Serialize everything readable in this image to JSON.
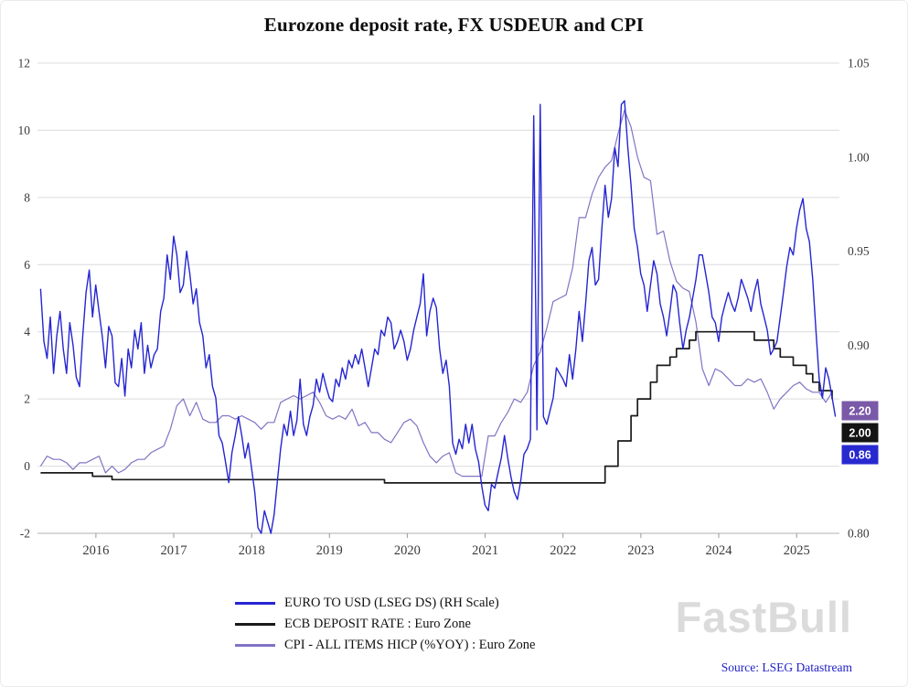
{
  "title": "Eurozone deposit rate, FX USDEUR and CPI",
  "watermark": "FastBull",
  "source": "Source: LSEG Datastream",
  "colors": {
    "eur_usd_line": "#2525d2",
    "deposit_line": "#1a1a1a",
    "cpi_line": "#8273c4",
    "grid": "#dcdcdc",
    "axis_text": "#3a3a3a",
    "source_text": "#1f1fc8",
    "watermark_text": "#d3d3d3"
  },
  "last_value_labels": [
    {
      "text": "2.20",
      "bg": "#7a5aa8",
      "text_color": "#ffffff"
    },
    {
      "text": "2.00",
      "bg": "#141414",
      "text_color": "#ffffff"
    },
    {
      "text": "0.86",
      "bg": "#2929d0",
      "text_color": "#ffffff"
    }
  ],
  "chart_data": {
    "type": "line",
    "title": "Eurozone deposit rate, FX USDEUR and CPI",
    "grid": "horizontal",
    "legend_position": "bottom-left",
    "x": {
      "min": 2015.25,
      "max": 2025.55,
      "ticks": [
        2016,
        2017,
        2018,
        2019,
        2020,
        2021,
        2022,
        2023,
        2024,
        2025
      ]
    },
    "y_left": {
      "min": -2,
      "max": 12,
      "ticks": [
        -2,
        0,
        2,
        4,
        6,
        8,
        10,
        12
      ]
    },
    "y_right": {
      "min": 0.8,
      "max": 1.05,
      "ticks": [
        {
          "value": 1.05,
          "label": "1.05"
        },
        {
          "value": 1.0,
          "label": "1.00"
        },
        {
          "value": 0.95,
          "label": "0.95"
        },
        {
          "value": 0.9,
          "label": "0.90"
        },
        {
          "value": 0.8,
          "label": "0.80"
        }
      ]
    },
    "series": [
      {
        "id": "eur-usd",
        "name": "EURO TO USD (LSEG DS) (RH Scale)",
        "axis": "right",
        "color": "#2525d2",
        "last_value": 0.86,
        "x_start": 2015.29,
        "x_step": 0.041667,
        "values": [
          0.93,
          0.902,
          0.893,
          0.915,
          0.885,
          0.905,
          0.918,
          0.898,
          0.885,
          0.912,
          0.9,
          0.883,
          0.878,
          0.905,
          0.928,
          0.94,
          0.915,
          0.932,
          0.918,
          0.905,
          0.888,
          0.91,
          0.905,
          0.88,
          0.878,
          0.893,
          0.873,
          0.898,
          0.888,
          0.908,
          0.898,
          0.912,
          0.885,
          0.9,
          0.888,
          0.895,
          0.898,
          0.918,
          0.925,
          0.948,
          0.935,
          0.958,
          0.948,
          0.928,
          0.932,
          0.95,
          0.938,
          0.922,
          0.93,
          0.912,
          0.905,
          0.888,
          0.895,
          0.878,
          0.872,
          0.852,
          0.848,
          0.838,
          0.827,
          0.843,
          0.852,
          0.862,
          0.852,
          0.84,
          0.848,
          0.835,
          0.822,
          0.803,
          0.8,
          0.812,
          0.806,
          0.8,
          0.81,
          0.828,
          0.845,
          0.858,
          0.852,
          0.865,
          0.852,
          0.86,
          0.882,
          0.858,
          0.852,
          0.862,
          0.868,
          0.882,
          0.875,
          0.885,
          0.878,
          0.872,
          0.87,
          0.882,
          0.878,
          0.888,
          0.882,
          0.892,
          0.888,
          0.895,
          0.89,
          0.898,
          0.888,
          0.878,
          0.888,
          0.898,
          0.895,
          0.908,
          0.905,
          0.915,
          0.912,
          0.898,
          0.902,
          0.908,
          0.902,
          0.892,
          0.898,
          0.908,
          0.915,
          0.922,
          0.938,
          0.905,
          0.918,
          0.925,
          0.92,
          0.898,
          0.885,
          0.892,
          0.878,
          0.848,
          0.842,
          0.85,
          0.845,
          0.858,
          0.848,
          0.858,
          0.845,
          0.838,
          0.825,
          0.815,
          0.812,
          0.826,
          0.824,
          0.832,
          0.84,
          0.852,
          0.84,
          0.83,
          0.822,
          0.818,
          0.828,
          0.842,
          0.845,
          0.85,
          1.022,
          0.855,
          1.028,
          0.862,
          0.858,
          0.865,
          0.872,
          0.888,
          0.885,
          0.882,
          0.878,
          0.895,
          0.882,
          0.898,
          0.918,
          0.902,
          0.922,
          0.945,
          0.952,
          0.932,
          0.935,
          0.962,
          0.985,
          0.968,
          0.978,
          1.005,
          0.995,
          1.028,
          1.03,
          1.005,
          0.985,
          0.962,
          0.952,
          0.938,
          0.932,
          0.918,
          0.932,
          0.945,
          0.938,
          0.922,
          0.915,
          0.905,
          0.918,
          0.932,
          0.928,
          0.912,
          0.898,
          0.908,
          0.915,
          0.925,
          0.935,
          0.948,
          0.948,
          0.938,
          0.928,
          0.915,
          0.912,
          0.902,
          0.915,
          0.922,
          0.928,
          0.922,
          0.918,
          0.925,
          0.935,
          0.93,
          0.925,
          0.918,
          0.928,
          0.935,
          0.922,
          0.915,
          0.908,
          0.895,
          0.898,
          0.902,
          0.915,
          0.928,
          0.942,
          0.952,
          0.948,
          0.962,
          0.972,
          0.978,
          0.962,
          0.955,
          0.935,
          0.908,
          0.882,
          0.872,
          0.888,
          0.882,
          0.872,
          0.862
        ]
      },
      {
        "id": "ecb-deposit-rate",
        "name": "ECB DEPOSIT RATE : Euro Zone",
        "axis": "left",
        "color": "#1a1a1a",
        "step": true,
        "last_value": 2.0,
        "x_start": 2015.29,
        "x_step": 0.083333,
        "values": [
          -0.2,
          -0.2,
          -0.2,
          -0.2,
          -0.2,
          -0.2,
          -0.2,
          -0.2,
          -0.3,
          -0.3,
          -0.3,
          -0.4,
          -0.4,
          -0.4,
          -0.4,
          -0.4,
          -0.4,
          -0.4,
          -0.4,
          -0.4,
          -0.4,
          -0.4,
          -0.4,
          -0.4,
          -0.4,
          -0.4,
          -0.4,
          -0.4,
          -0.4,
          -0.4,
          -0.4,
          -0.4,
          -0.4,
          -0.4,
          -0.4,
          -0.4,
          -0.4,
          -0.4,
          -0.4,
          -0.4,
          -0.4,
          -0.4,
          -0.4,
          -0.4,
          -0.4,
          -0.4,
          -0.4,
          -0.4,
          -0.4,
          -0.4,
          -0.4,
          -0.4,
          -0.4,
          -0.5,
          -0.5,
          -0.5,
          -0.5,
          -0.5,
          -0.5,
          -0.5,
          -0.5,
          -0.5,
          -0.5,
          -0.5,
          -0.5,
          -0.5,
          -0.5,
          -0.5,
          -0.5,
          -0.5,
          -0.5,
          -0.5,
          -0.5,
          -0.5,
          -0.5,
          -0.5,
          -0.5,
          -0.5,
          -0.5,
          -0.5,
          -0.5,
          -0.5,
          -0.5,
          -0.5,
          -0.5,
          -0.5,
          -0.5,
          0.0,
          0.0,
          0.75,
          0.75,
          1.5,
          2.0,
          2.0,
          2.5,
          3.0,
          3.0,
          3.25,
          3.5,
          3.5,
          3.75,
          4.0,
          4.0,
          4.0,
          4.0,
          4.0,
          4.0,
          4.0,
          4.0,
          4.0,
          3.75,
          3.75,
          3.75,
          3.5,
          3.25,
          3.25,
          3.0,
          3.0,
          2.75,
          2.5,
          2.25,
          2.25,
          2.0
        ]
      },
      {
        "id": "cpi-hicp",
        "name": "CPI - ALL ITEMS HICP (%YOY) : Euro Zone",
        "axis": "left",
        "color": "#8273c4",
        "last_value": 2.2,
        "x_start": 2015.29,
        "x_step": 0.083333,
        "values": [
          0.0,
          0.3,
          0.2,
          0.2,
          0.1,
          -0.1,
          0.1,
          0.1,
          0.2,
          0.3,
          -0.2,
          0.0,
          -0.2,
          -0.1,
          0.1,
          0.2,
          0.2,
          0.4,
          0.5,
          0.6,
          1.1,
          1.8,
          2.0,
          1.5,
          1.9,
          1.4,
          1.3,
          1.3,
          1.5,
          1.5,
          1.4,
          1.5,
          1.4,
          1.3,
          1.1,
          1.3,
          1.3,
          1.9,
          2.0,
          2.1,
          2.0,
          2.1,
          2.2,
          1.9,
          1.5,
          1.4,
          1.5,
          1.4,
          1.7,
          1.2,
          1.3,
          1.0,
          1.0,
          0.8,
          0.7,
          1.0,
          1.3,
          1.4,
          1.2,
          0.7,
          0.3,
          0.1,
          0.3,
          0.4,
          -0.2,
          -0.3,
          -0.3,
          -0.3,
          -0.3,
          0.9,
          0.9,
          1.3,
          1.6,
          2.0,
          1.9,
          2.2,
          3.0,
          3.4,
          4.1,
          4.9,
          5.0,
          5.1,
          5.9,
          7.4,
          7.4,
          8.1,
          8.6,
          8.9,
          9.1,
          9.9,
          10.6,
          10.1,
          9.2,
          8.6,
          8.5,
          6.9,
          7.0,
          6.1,
          5.5,
          5.3,
          5.2,
          4.3,
          2.9,
          2.4,
          2.9,
          2.8,
          2.6,
          2.4,
          2.4,
          2.6,
          2.5,
          2.6,
          2.2,
          1.7,
          2.0,
          2.2,
          2.4,
          2.5,
          2.3,
          2.2,
          2.2,
          1.9,
          2.2
        ]
      }
    ]
  }
}
